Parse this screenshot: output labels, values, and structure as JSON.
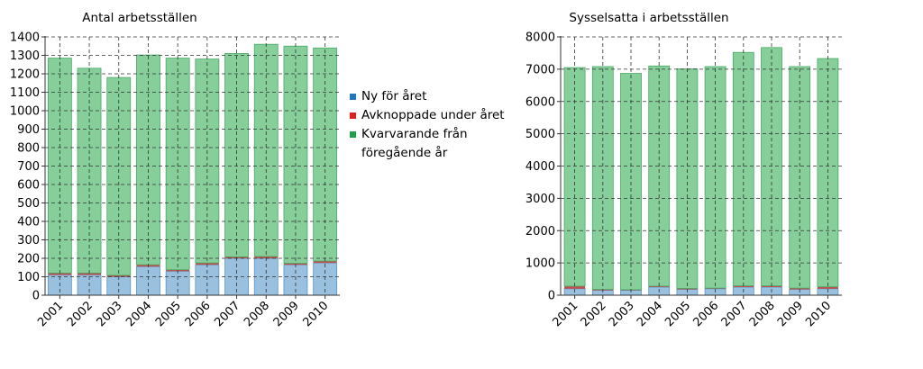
{
  "legend": {
    "items": [
      {
        "label": "Ny för året",
        "color": "#1f77c4"
      },
      {
        "label": "Avknoppade under året",
        "color": "#e02020"
      },
      {
        "label": "Kvarvarande från föregående år",
        "color": "#1e9e4a"
      }
    ]
  },
  "chart_data": [
    {
      "type": "bar",
      "stacked": true,
      "title": "Antal arbetsställen",
      "categories": [
        "2001",
        "2002",
        "2003",
        "2004",
        "2005",
        "2006",
        "2007",
        "2008",
        "2009",
        "2010"
      ],
      "series": [
        {
          "name": "Ny för året",
          "values": [
            110,
            110,
            100,
            155,
            130,
            165,
            200,
            200,
            165,
            175
          ],
          "color": "#99c0de"
        },
        {
          "name": "Avknoppade under året",
          "values": [
            10,
            10,
            8,
            10,
            8,
            10,
            8,
            10,
            8,
            10
          ],
          "color": "#c0504d"
        },
        {
          "name": "Kvarvarande från föregående år",
          "values": [
            1165,
            1110,
            1072,
            1137,
            1147,
            1105,
            1102,
            1150,
            1177,
            1155
          ],
          "color": "#86cf9b"
        }
      ],
      "ylim": [
        0,
        1400
      ],
      "yticks": [
        0,
        100,
        200,
        300,
        400,
        500,
        600,
        700,
        800,
        900,
        1000,
        1100,
        1200,
        1300,
        1400
      ],
      "grid": "dashed"
    },
    {
      "type": "bar",
      "stacked": true,
      "title": "Sysselsatta i arbetsställen",
      "categories": [
        "2001",
        "2002",
        "2003",
        "2004",
        "2005",
        "2006",
        "2007",
        "2008",
        "2009",
        "2010"
      ],
      "series": [
        {
          "name": "Ny för året",
          "values": [
            200,
            150,
            150,
            250,
            180,
            200,
            250,
            250,
            180,
            200
          ],
          "color": "#99c0de"
        },
        {
          "name": "Avknoppade under året",
          "values": [
            80,
            30,
            20,
            30,
            30,
            20,
            40,
            40,
            40,
            60
          ],
          "color": "#c0504d"
        },
        {
          "name": "Kvarvarande från föregående år",
          "values": [
            6770,
            6900,
            6700,
            6820,
            6800,
            6860,
            7230,
            7380,
            6860,
            7070
          ],
          "color": "#86cf9b"
        }
      ],
      "ylim": [
        0,
        8000
      ],
      "yticks": [
        0,
        1000,
        2000,
        3000,
        4000,
        5000,
        6000,
        7000,
        8000
      ],
      "grid": "dashed"
    }
  ]
}
